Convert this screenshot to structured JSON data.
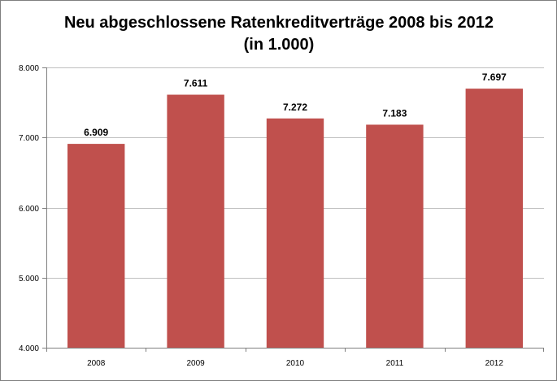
{
  "chart_data": {
    "type": "bar",
    "title_lines": [
      "Neu abgeschlossene Ratenkreditverträge 2008 bis 2012",
      "(in 1.000)"
    ],
    "categories": [
      "2008",
      "2009",
      "2010",
      "2011",
      "2012"
    ],
    "values": [
      6909,
      7611,
      7272,
      7183,
      7697
    ],
    "value_labels": [
      "6.909",
      "7.611",
      "7.272",
      "7.183",
      "7.697"
    ],
    "ylim": [
      4000,
      8000
    ],
    "yticks": [
      4000,
      5000,
      6000,
      7000,
      8000
    ],
    "ytick_labels": [
      "4.000",
      "5.000",
      "6.000",
      "7.000",
      "8.000"
    ],
    "grid": true,
    "legend": "none",
    "bar_color": "#c0504d",
    "grid_color": "#bfbfbf"
  }
}
